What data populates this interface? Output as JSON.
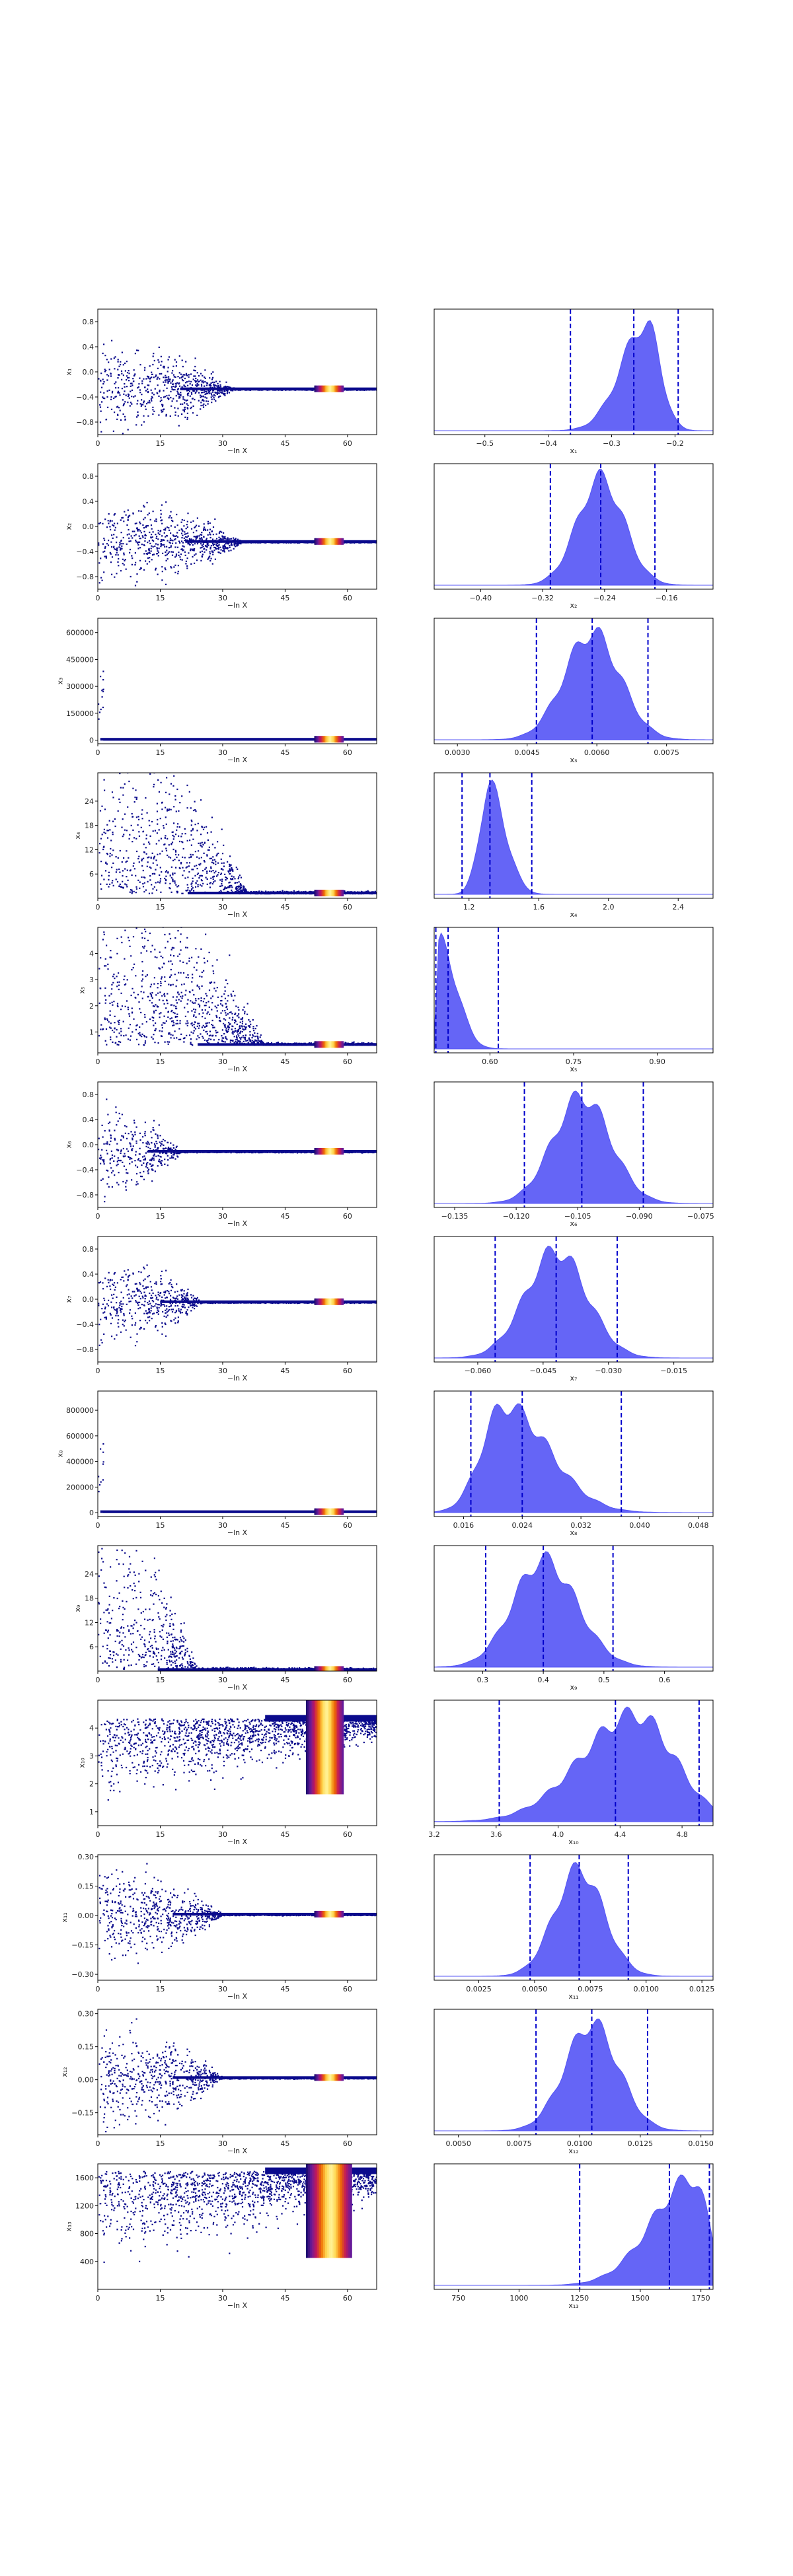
{
  "figure": {
    "colors": {
      "points": "#0a0a8c",
      "colormap": [
        "#1a0a6e",
        "#6a1b9a",
        "#c2185b",
        "#ef6c00",
        "#ffd54f",
        "#fff59d"
      ],
      "density_fill": "#5454f5",
      "quantile_line": "#0000cc"
    }
  },
  "chart_data": [
    {
      "type": "scatter",
      "xlabel": "−ln X",
      "ylabel": "x₁",
      "xlim": [
        0,
        67
      ],
      "ylim": [
        -1.0,
        1.0
      ],
      "xticks": [
        0,
        15,
        30,
        45,
        60
      ],
      "yticks": [
        -0.8,
        -0.4,
        0.0,
        0.4,
        0.8
      ],
      "tick_labels_x": [
        "0",
        "15",
        "30",
        "45",
        "60"
      ],
      "tick_labels_y": [
        "−0.8",
        "−0.4",
        "0.0",
        "0.4",
        "0.8"
      ],
      "converge": -0.27,
      "spread": 0.9,
      "spread_end": 33,
      "shape": "normal",
      "hotspot": [
        52,
        59
      ]
    },
    {
      "type": "area",
      "xlabel": "x₁",
      "xlim": [
        -0.58,
        -0.14
      ],
      "xticks": [
        -0.5,
        -0.4,
        -0.3,
        -0.2
      ],
      "tick_labels_x": [
        "−0.5",
        "−0.4",
        "−0.3",
        "−0.2"
      ],
      "peak": -0.245,
      "sd_left": 0.04,
      "sd_right": 0.022,
      "quantiles": [
        -0.365,
        -0.265,
        -0.195
      ]
    },
    {
      "type": "scatter",
      "xlabel": "−ln X",
      "ylabel": "x₂",
      "xlim": [
        0,
        67
      ],
      "ylim": [
        -1.0,
        1.0
      ],
      "xticks": [
        0,
        15,
        30,
        45,
        60
      ],
      "yticks": [
        -0.8,
        -0.4,
        0.0,
        0.4,
        0.8
      ],
      "tick_labels_x": [
        "0",
        "15",
        "30",
        "45",
        "60"
      ],
      "tick_labels_y": [
        "−0.8",
        "−0.4",
        "0.0",
        "0.4",
        "0.8"
      ],
      "converge": -0.24,
      "spread": 0.9,
      "spread_end": 35,
      "shape": "normal",
      "hotspot": [
        52,
        59
      ]
    },
    {
      "type": "area",
      "xlabel": "x₂",
      "xlim": [
        -0.46,
        -0.1
      ],
      "xticks": [
        -0.4,
        -0.32,
        -0.24,
        -0.16
      ],
      "tick_labels_x": [
        "−0.40",
        "−0.32",
        "−0.24",
        "−0.16"
      ],
      "peak": -0.245,
      "sd_left": 0.03,
      "sd_right": 0.03,
      "quantiles": [
        -0.31,
        -0.245,
        -0.175
      ]
    },
    {
      "type": "scatter",
      "xlabel": "−ln X",
      "ylabel": "x₃",
      "xlim": [
        0,
        67
      ],
      "ylim": [
        -20000,
        680000
      ],
      "xticks": [
        0,
        15,
        30,
        45,
        60
      ],
      "yticks": [
        0,
        150000,
        300000,
        450000,
        600000
      ],
      "tick_labels_x": [
        "0",
        "15",
        "30",
        "45",
        "60"
      ],
      "tick_labels_y": [
        "0",
        "150000",
        "300000",
        "450000",
        "600000"
      ],
      "converge": 5000,
      "spread": 0,
      "spread_end": 1,
      "shape": "spike",
      "hotspot": [
        52,
        59
      ]
    },
    {
      "type": "area",
      "xlabel": "x₃",
      "xlim": [
        0.0025,
        0.0085
      ],
      "xticks": [
        0.003,
        0.0045,
        0.006,
        0.0075
      ],
      "tick_labels_x": [
        "0.0030",
        "0.0045",
        "0.0060",
        "0.0075"
      ],
      "peak": 0.0059,
      "sd_left": 0.0006,
      "sd_right": 0.0006,
      "quantiles": [
        0.0047,
        0.0059,
        0.0071
      ]
    },
    {
      "type": "scatter",
      "xlabel": "−ln X",
      "ylabel": "x₄",
      "xlim": [
        0,
        67
      ],
      "ylim": [
        0,
        31
      ],
      "xticks": [
        0,
        15,
        30,
        45,
        60
      ],
      "yticks": [
        6,
        12,
        18,
        24
      ],
      "tick_labels_x": [
        "0",
        "15",
        "30",
        "45",
        "60"
      ],
      "tick_labels_y": [
        "6",
        "12",
        "18",
        "24"
      ],
      "converge": 1.3,
      "spread": 30,
      "spread_end": 36,
      "shape": "skew",
      "hotspot": [
        52,
        59
      ]
    },
    {
      "type": "area",
      "xlabel": "x₄",
      "xlim": [
        1.0,
        2.6
      ],
      "xticks": [
        1.2,
        1.6,
        2.0,
        2.4
      ],
      "tick_labels_x": [
        "1.2",
        "1.6",
        "2.0",
        "2.4"
      ],
      "peak": 1.32,
      "sd_left": 0.06,
      "sd_right": 0.09,
      "quantiles": [
        1.16,
        1.32,
        1.56
      ]
    },
    {
      "type": "scatter",
      "xlabel": "−ln X",
      "ylabel": "x₅",
      "xlim": [
        0,
        67
      ],
      "ylim": [
        0.2,
        5.0
      ],
      "xticks": [
        0,
        15,
        30,
        45,
        60
      ],
      "yticks": [
        1,
        2,
        3,
        4
      ],
      "tick_labels_x": [
        "0",
        "15",
        "30",
        "45",
        "60"
      ],
      "tick_labels_y": [
        "1",
        "2",
        "3",
        "4"
      ],
      "converge": 0.52,
      "spread": 4.8,
      "spread_end": 40,
      "shape": "skew",
      "hotspot": [
        52,
        59
      ]
    },
    {
      "type": "area",
      "xlabel": "x₅",
      "xlim": [
        0.5,
        1.0
      ],
      "xticks": [
        0.6,
        0.75,
        0.9
      ],
      "tick_labels_x": [
        "0.60",
        "0.75",
        "0.90"
      ],
      "peak": 0.51,
      "sd_left": 0.005,
      "sd_right": 0.03,
      "quantiles": [
        0.503,
        0.525,
        0.615
      ]
    },
    {
      "type": "scatter",
      "xlabel": "−ln X",
      "ylabel": "x₆",
      "xlim": [
        0,
        67
      ],
      "ylim": [
        -1.0,
        1.0
      ],
      "xticks": [
        0,
        15,
        30,
        45,
        60
      ],
      "yticks": [
        -0.8,
        -0.4,
        0.0,
        0.4,
        0.8
      ],
      "tick_labels_x": [
        "0",
        "15",
        "30",
        "45",
        "60"
      ],
      "tick_labels_y": [
        "−0.8",
        "−0.4",
        "0.0",
        "0.4",
        "0.8"
      ],
      "converge": -0.105,
      "spread": 0.95,
      "spread_end": 20,
      "shape": "normal",
      "hotspot": [
        52,
        59
      ]
    },
    {
      "type": "area",
      "xlabel": "x₆",
      "xlim": [
        -0.14,
        -0.072
      ],
      "xticks": [
        -0.135,
        -0.12,
        -0.105,
        -0.09,
        -0.075
      ],
      "tick_labels_x": [
        "−0.135",
        "−0.120",
        "−0.105",
        "−0.090",
        "−0.075"
      ],
      "peak": -0.104,
      "sd_left": 0.007,
      "sd_right": 0.007,
      "quantiles": [
        -0.118,
        -0.104,
        -0.089
      ]
    },
    {
      "type": "scatter",
      "xlabel": "−ln X",
      "ylabel": "x₇",
      "xlim": [
        0,
        67
      ],
      "ylim": [
        -1.0,
        1.0
      ],
      "xticks": [
        0,
        15,
        30,
        45,
        60
      ],
      "yticks": [
        -0.8,
        -0.4,
        0.0,
        0.4,
        0.8
      ],
      "tick_labels_x": [
        "0",
        "15",
        "30",
        "45",
        "60"
      ],
      "tick_labels_y": [
        "−0.8",
        "−0.4",
        "0.0",
        "0.4",
        "0.8"
      ],
      "converge": -0.04,
      "spread": 0.95,
      "spread_end": 25,
      "shape": "normal",
      "hotspot": [
        52,
        59
      ]
    },
    {
      "type": "area",
      "xlabel": "x₇",
      "xlim": [
        -0.07,
        -0.006
      ],
      "xticks": [
        -0.06,
        -0.045,
        -0.03,
        -0.015
      ],
      "tick_labels_x": [
        "−0.060",
        "−0.045",
        "−0.030",
        "−0.015"
      ],
      "peak": -0.042,
      "sd_left": 0.007,
      "sd_right": 0.007,
      "quantiles": [
        -0.056,
        -0.042,
        -0.028
      ]
    },
    {
      "type": "scatter",
      "xlabel": "−ln X",
      "ylabel": "x₈",
      "xlim": [
        0,
        67
      ],
      "ylim": [
        -30000,
        950000
      ],
      "xticks": [
        0,
        15,
        30,
        45,
        60
      ],
      "yticks": [
        0,
        200000,
        400000,
        600000,
        800000
      ],
      "tick_labels_x": [
        "0",
        "15",
        "30",
        "45",
        "60"
      ],
      "tick_labels_y": [
        "0",
        "200000",
        "400000",
        "600000",
        "800000"
      ],
      "converge": 8000,
      "spread": 0,
      "spread_end": 1,
      "shape": "spike",
      "hotspot": [
        52,
        59
      ]
    },
    {
      "type": "area",
      "xlabel": "x₈",
      "xlim": [
        0.012,
        0.05
      ],
      "xticks": [
        0.016,
        0.024,
        0.032,
        0.04,
        0.048
      ],
      "tick_labels_x": [
        "0.016",
        "0.024",
        "0.032",
        "0.040",
        "0.048"
      ],
      "peak": 0.0215,
      "sd_left": 0.003,
      "sd_right": 0.006,
      "quantiles": [
        0.017,
        0.024,
        0.0375
      ]
    },
    {
      "type": "scatter",
      "xlabel": "−ln X",
      "ylabel": "x₉",
      "xlim": [
        0,
        67
      ],
      "ylim": [
        0,
        31
      ],
      "xticks": [
        0,
        15,
        30,
        45,
        60
      ],
      "yticks": [
        6,
        12,
        18,
        24
      ],
      "tick_labels_x": [
        "0",
        "15",
        "30",
        "45",
        "60"
      ],
      "tick_labels_y": [
        "6",
        "12",
        "18",
        "24"
      ],
      "converge": 0.4,
      "spread": 30,
      "spread_end": 24,
      "shape": "skew",
      "hotspot": [
        52,
        59
      ]
    },
    {
      "type": "area",
      "xlabel": "x₉",
      "xlim": [
        0.22,
        0.68
      ],
      "xticks": [
        0.3,
        0.4,
        0.5,
        0.6
      ],
      "tick_labels_x": [
        "0.3",
        "0.4",
        "0.5",
        "0.6"
      ],
      "peak": 0.4,
      "sd_left": 0.05,
      "sd_right": 0.055,
      "quantiles": [
        0.305,
        0.4,
        0.515
      ]
    },
    {
      "type": "scatter",
      "xlabel": "−ln X",
      "ylabel": "x₁₀",
      "xlim": [
        0,
        67
      ],
      "ylim": [
        0.5,
        5.0
      ],
      "xticks": [
        0,
        15,
        30,
        45,
        60
      ],
      "yticks": [
        1,
        2,
        3,
        4
      ],
      "tick_labels_x": [
        "0",
        "15",
        "30",
        "45",
        "60"
      ],
      "tick_labels_y": [
        "1",
        "2",
        "3",
        "4"
      ],
      "converge": 4.35,
      "spread": 3.8,
      "spread_end": 67,
      "shape": "band",
      "hotspot": [
        50,
        59
      ]
    },
    {
      "type": "area",
      "xlabel": "x₁₀",
      "xlim": [
        3.2,
        5.0
      ],
      "xticks": [
        3.2,
        3.6,
        4.0,
        4.4,
        4.8
      ],
      "tick_labels_x": [
        "3.2",
        "3.6",
        "4.0",
        "4.4",
        "4.8"
      ],
      "peak": 4.5,
      "sd_left": 0.35,
      "sd_right": 0.25,
      "quantiles": [
        3.62,
        4.37,
        4.91
      ]
    },
    {
      "type": "scatter",
      "xlabel": "−ln X",
      "ylabel": "x₁₁",
      "xlim": [
        0,
        67
      ],
      "ylim": [
        -0.33,
        0.31
      ],
      "xticks": [
        0,
        15,
        30,
        45,
        60
      ],
      "yticks": [
        -0.3,
        -0.15,
        0.0,
        0.15,
        0.3
      ],
      "tick_labels_x": [
        "0",
        "15",
        "30",
        "45",
        "60"
      ],
      "tick_labels_y": [
        "−0.30",
        "−0.15",
        "0.00",
        "0.15",
        "0.30"
      ],
      "converge": 0.007,
      "spread": 0.32,
      "spread_end": 30,
      "shape": "normal",
      "hotspot": [
        52,
        59
      ]
    },
    {
      "type": "area",
      "xlabel": "x₁₁",
      "xlim": [
        0.0005,
        0.013
      ],
      "xticks": [
        0.0025,
        0.005,
        0.0075,
        0.01,
        0.0125
      ],
      "tick_labels_x": [
        "0.0025",
        "0.0050",
        "0.0075",
        "0.0100",
        "0.0125"
      ],
      "peak": 0.007,
      "sd_left": 0.0011,
      "sd_right": 0.0011,
      "quantiles": [
        0.0048,
        0.007,
        0.0092
      ]
    },
    {
      "type": "scatter",
      "xlabel": "−ln X",
      "ylabel": "x₁₂",
      "xlim": [
        0,
        67
      ],
      "ylim": [
        -0.25,
        0.32
      ],
      "xticks": [
        0,
        15,
        30,
        45,
        60
      ],
      "yticks": [
        -0.15,
        0.0,
        0.15,
        0.3
      ],
      "tick_labels_x": [
        "0",
        "15",
        "30",
        "45",
        "60"
      ],
      "tick_labels_y": [
        "−0.15",
        "0.00",
        "0.15",
        "0.30"
      ],
      "converge": 0.01,
      "spread": 0.3,
      "spread_end": 30,
      "shape": "normal",
      "hotspot": [
        52,
        59
      ]
    },
    {
      "type": "area",
      "xlabel": "x₁₂",
      "xlim": [
        0.004,
        0.0155
      ],
      "xticks": [
        0.005,
        0.0075,
        0.01,
        0.0125,
        0.015
      ],
      "tick_labels_x": [
        "0.0050",
        "0.0075",
        "0.0100",
        "0.0125",
        "0.0150"
      ],
      "peak": 0.0105,
      "sd_left": 0.0011,
      "sd_right": 0.0011,
      "quantiles": [
        0.0082,
        0.0105,
        0.0128
      ]
    },
    {
      "type": "scatter",
      "xlabel": "−ln X",
      "ylabel": "x₁₃",
      "xlim": [
        0,
        67
      ],
      "ylim": [
        0,
        1800
      ],
      "xticks": [
        0,
        15,
        30,
        45,
        60
      ],
      "yticks": [
        400,
        800,
        1200,
        1600
      ],
      "tick_labels_x": [
        "0",
        "15",
        "30",
        "45",
        "60"
      ],
      "tick_labels_y": [
        "400",
        "800",
        "1200",
        "1600"
      ],
      "converge": 1700,
      "spread": 1700,
      "spread_end": 67,
      "shape": "band",
      "hotspot": [
        50,
        61
      ]
    },
    {
      "type": "area",
      "xlabel": "x₁₃",
      "xlim": [
        650,
        1800
      ],
      "xticks": [
        750,
        1000,
        1250,
        1500,
        1750
      ],
      "tick_labels_x": [
        "750",
        "1000",
        "1250",
        "1500",
        "1750"
      ],
      "peak": 1720,
      "sd_left": 170,
      "sd_right": 60,
      "quantiles": [
        1250,
        1620,
        1785
      ]
    }
  ]
}
